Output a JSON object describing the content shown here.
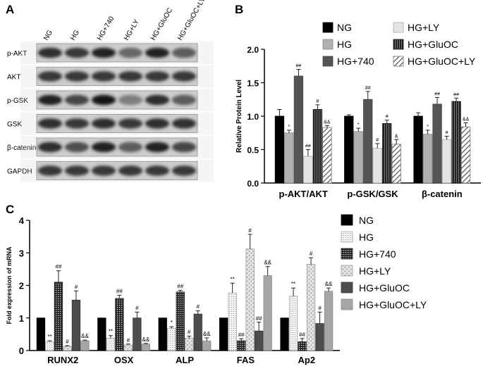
{
  "figure": {
    "panel_a": {
      "letter": "A",
      "lane_labels": [
        "NG",
        "HG",
        "HG+740",
        "HG+LY",
        "HG+GluOC",
        "HG+GluOC+LY"
      ],
      "rows": [
        {
          "label": "p-AKT",
          "intensity": [
            0.8,
            0.75,
            0.85,
            0.55,
            0.85,
            0.6
          ]
        },
        {
          "label": "AKT",
          "intensity": [
            0.75,
            0.75,
            0.75,
            0.75,
            0.75,
            0.75
          ]
        },
        {
          "label": "p-GSK",
          "intensity": [
            0.85,
            0.7,
            0.9,
            0.45,
            0.8,
            0.6
          ]
        },
        {
          "label": "GSK",
          "intensity": [
            0.8,
            0.75,
            0.8,
            0.75,
            0.8,
            0.78
          ]
        },
        {
          "label": "β-catenin",
          "intensity": [
            0.8,
            0.65,
            0.85,
            0.6,
            0.85,
            0.7
          ]
        },
        {
          "label": "GAPDH",
          "intensity": [
            0.75,
            0.75,
            0.75,
            0.75,
            0.75,
            0.75
          ]
        }
      ]
    },
    "panel_b_letter": "B",
    "panel_c_letter": "C"
  },
  "colors": {
    "ng": "#000000",
    "hg_b": "#b0b0b0",
    "hg740": "#555555",
    "hgly": "#e4e4e4",
    "gluoc": "#333333",
    "gluocly": "#ffffff",
    "hg_c": "#e8e8e8",
    "hgly_c": "#dcdcdc",
    "gluoc_c": "#4d4d4d",
    "gluocly_c": "#a6a6a6"
  },
  "chart_data": [
    {
      "type": "bar",
      "panel": "B",
      "title": "",
      "xlabel": "",
      "ylabel": "Relative Protein Level",
      "ylim": [
        0,
        2.0
      ],
      "yticks": [
        "0.0",
        "0.5",
        "1.0",
        "1.5",
        "2.0"
      ],
      "categories": [
        "p-AKT/AKT",
        "p-GSK/GSK",
        "β-catenin"
      ],
      "legend_position": "top",
      "series": [
        {
          "name": "NG",
          "pattern": "solid-black",
          "values": [
            1.0,
            1.0,
            1.0
          ],
          "errors": [
            0.1,
            0.02,
            0.05
          ],
          "marks": [
            "",
            "",
            ""
          ]
        },
        {
          "name": "HG",
          "pattern": "solid-gray",
          "values": [
            0.75,
            0.77,
            0.73
          ],
          "errors": [
            0.04,
            0.05,
            0.06
          ],
          "marks": [
            "*",
            "*",
            "*"
          ]
        },
        {
          "name": "HG+740",
          "pattern": "dark-gray",
          "values": [
            1.6,
            1.25,
            1.18
          ],
          "errors": [
            0.1,
            0.12,
            0.1
          ],
          "marks": [
            "##",
            "##",
            "##"
          ]
        },
        {
          "name": "HG+LY",
          "pattern": "light-gray",
          "values": [
            0.4,
            0.52,
            0.65
          ],
          "errors": [
            0.1,
            0.07,
            0.05
          ],
          "marks": [
            "##",
            "#",
            "#"
          ]
        },
        {
          "name": "HG+GluOC",
          "pattern": "vertical-stripes",
          "values": [
            1.1,
            0.89,
            1.22
          ],
          "errors": [
            0.07,
            0.05,
            0.05
          ],
          "marks": [
            "#",
            "#",
            "##"
          ]
        },
        {
          "name": "HG+GluOC+LY",
          "pattern": "diagonal-hatch",
          "values": [
            0.83,
            0.58,
            0.84
          ],
          "errors": [
            0.03,
            0.07,
            0.06
          ],
          "marks": [
            "&&",
            "&",
            "&&"
          ]
        }
      ]
    },
    {
      "type": "bar",
      "panel": "C",
      "title": "",
      "xlabel": "",
      "ylabel": "Fold expression of mRNA",
      "ylim": [
        0,
        4
      ],
      "yticks": [
        "0",
        "1",
        "2",
        "3",
        "4"
      ],
      "categories": [
        "RUNX2",
        "OSX",
        "ALP",
        "FAS",
        "Ap2"
      ],
      "legend_position": "right",
      "series": [
        {
          "name": "NG",
          "pattern": "solid-black",
          "values": [
            1.0,
            1.0,
            1.0,
            1.0,
            1.0
          ],
          "errors": [
            0,
            0,
            0,
            0,
            0
          ],
          "marks": [
            "",
            "",
            "",
            "",
            ""
          ]
        },
        {
          "name": "HG",
          "pattern": "fine-dots",
          "values": [
            0.27,
            0.38,
            0.68,
            1.77,
            1.67
          ],
          "errors": [
            0.03,
            0.08,
            0.05,
            0.3,
            0.25
          ],
          "marks": [
            "**",
            "**",
            "*",
            "**",
            "**"
          ]
        },
        {
          "name": "HG+740",
          "pattern": "grid",
          "values": [
            2.1,
            1.6,
            1.8,
            0.3,
            0.27
          ],
          "errors": [
            0.35,
            0.1,
            0.05,
            0.06,
            0.1
          ],
          "marks": [
            "##",
            "##",
            "##",
            "##",
            "##"
          ]
        },
        {
          "name": "HG+LY",
          "pattern": "diagonal-checks",
          "values": [
            0.13,
            0.17,
            0.38,
            3.12,
            2.65
          ],
          "errors": [
            0.02,
            0.03,
            0.06,
            0.45,
            0.2
          ],
          "marks": [
            "#",
            "#",
            "#",
            "#",
            "#"
          ]
        },
        {
          "name": "HG+GluOC",
          "pattern": "solid-dark",
          "values": [
            1.55,
            1.0,
            1.12,
            0.6,
            0.83
          ],
          "errors": [
            0.28,
            0.18,
            0.1,
            0.27,
            0.35
          ],
          "marks": [
            "#",
            "#",
            "#",
            "##",
            "#"
          ]
        },
        {
          "name": "HG+GluOC+LY",
          "pattern": "solid-mid",
          "values": [
            0.3,
            0.2,
            0.29,
            2.3,
            1.82
          ],
          "errors": [
            0.02,
            0.02,
            0.1,
            0.28,
            0.1
          ],
          "marks": [
            "&&",
            "&&",
            "&&",
            "&&",
            "&&"
          ]
        }
      ]
    }
  ]
}
